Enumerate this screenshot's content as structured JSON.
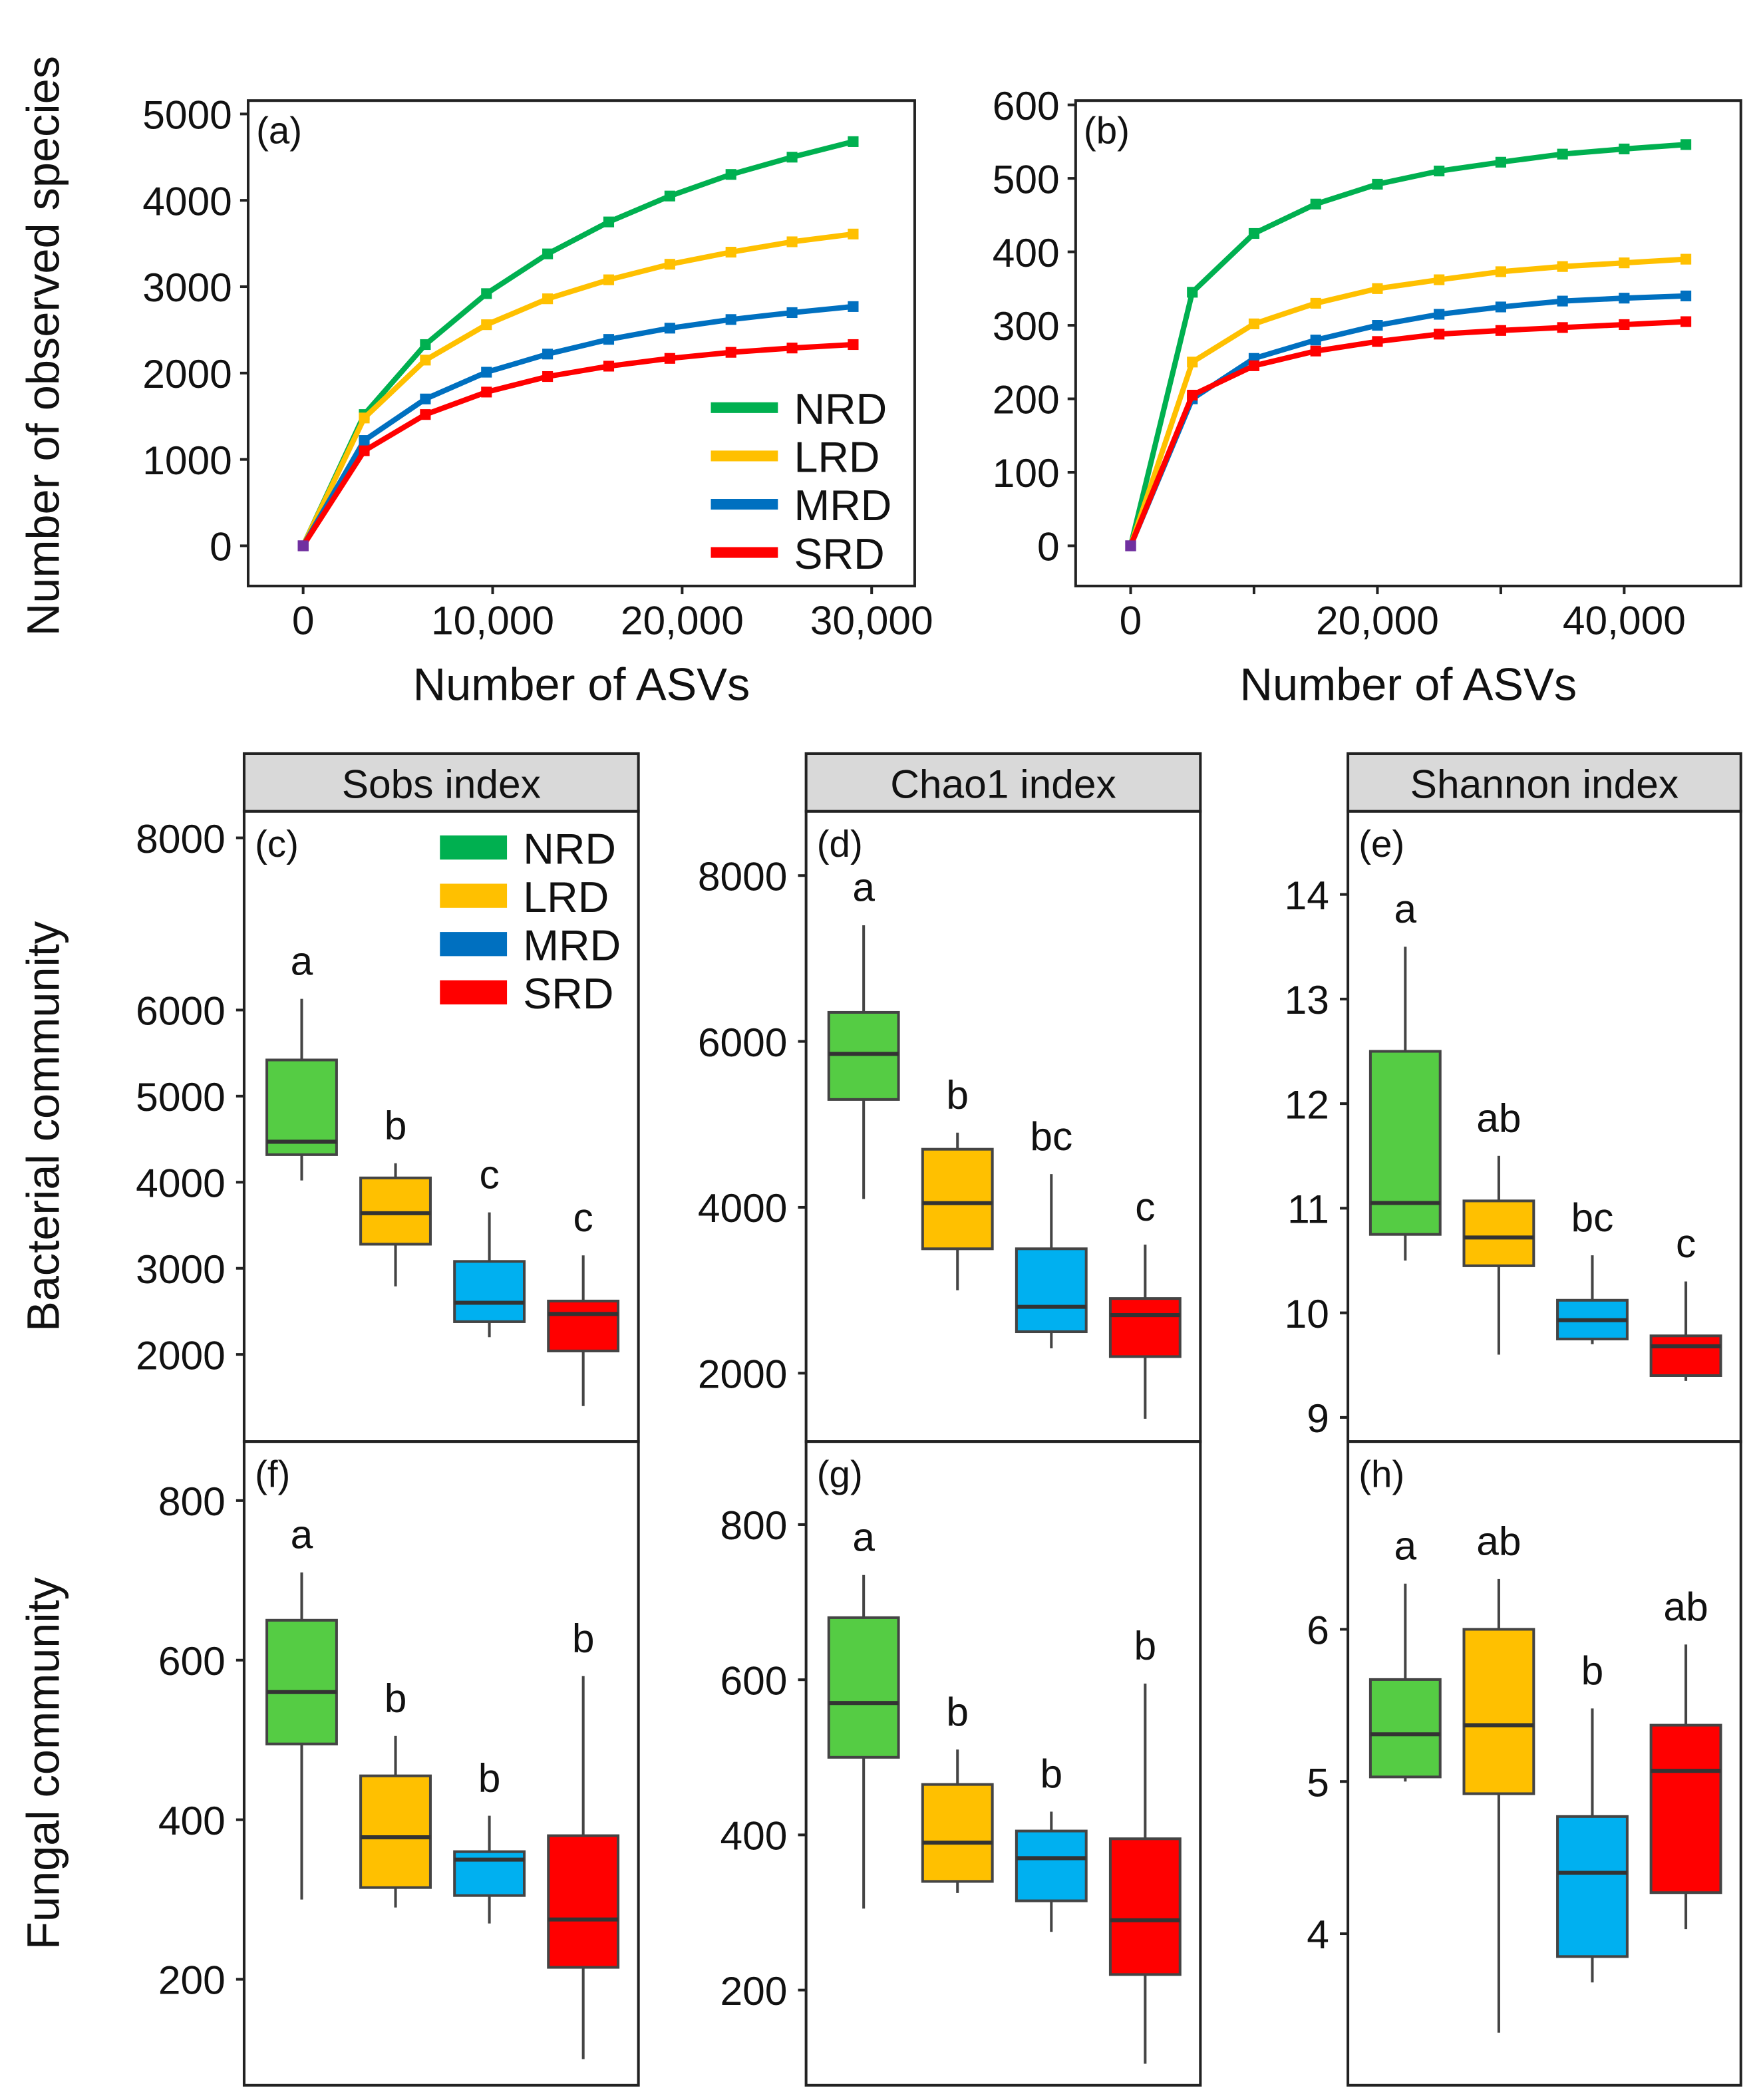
{
  "chart_data": [
    {
      "type": "line",
      "panel_label": "(a)",
      "xlabel": "Number of ASVs",
      "ylabel": "Number of observed species",
      "xlim": [
        -3000,
        34000
      ],
      "ylim": [
        -1000,
        5200
      ],
      "xticks": [
        0,
        10000,
        20000,
        30000
      ],
      "xtick_labels": [
        "0",
        "10,000",
        "20,000",
        "30,000"
      ],
      "yticks": [
        0,
        1000,
        2000,
        3000,
        4000,
        5000
      ],
      "ytick_labels": [
        "0",
        "1000",
        "2000",
        "3000",
        "4000",
        "5000"
      ],
      "legend": {
        "placement": "bottom-right",
        "entries": [
          "NRD",
          "LRD",
          "MRD",
          "SRD"
        ]
      },
      "x": [
        0,
        3225,
        6450,
        9675,
        12900,
        16125,
        19350,
        22575,
        25800,
        29025
      ],
      "series": [
        {
          "name": "NRD",
          "color": "#00b050",
          "values": [
            0,
            1520,
            2330,
            2920,
            3380,
            3750,
            4050,
            4300,
            4500,
            4680
          ]
        },
        {
          "name": "LRD",
          "color": "#ffc000",
          "values": [
            0,
            1480,
            2150,
            2560,
            2860,
            3080,
            3260,
            3400,
            3520,
            3610
          ]
        },
        {
          "name": "MRD",
          "color": "#0070c0",
          "values": [
            0,
            1220,
            1700,
            2010,
            2220,
            2390,
            2520,
            2620,
            2700,
            2770
          ]
        },
        {
          "name": "SRD",
          "color": "#ff0000",
          "values": [
            0,
            1100,
            1520,
            1780,
            1960,
            2080,
            2170,
            2240,
            2290,
            2330
          ]
        }
      ]
    },
    {
      "type": "line",
      "panel_label": "(b)",
      "xlabel": "Number of ASVs",
      "ylabel": "",
      "xlim": [
        -4500,
        49500
      ],
      "ylim": [
        -55,
        605
      ],
      "xticks": [
        0,
        20000,
        40000
      ],
      "xtick_labels": [
        "0",
        "20,000",
        "40,000"
      ],
      "minor_xticks": [
        10000,
        30000
      ],
      "yticks": [
        0,
        100,
        200,
        300,
        400,
        500,
        600
      ],
      "ytick_labels": [
        "0",
        "100",
        "200",
        "300",
        "400",
        "500",
        "600"
      ],
      "x": [
        0,
        5000,
        10000,
        15000,
        20000,
        25000,
        30000,
        35000,
        40000,
        45000
      ],
      "series": [
        {
          "name": "NRD",
          "color": "#00b050",
          "values": [
            0,
            345,
            425,
            465,
            492,
            510,
            522,
            533,
            540,
            546
          ]
        },
        {
          "name": "LRD",
          "color": "#ffc000",
          "values": [
            0,
            250,
            302,
            330,
            350,
            362,
            373,
            380,
            385,
            390
          ]
        },
        {
          "name": "MRD",
          "color": "#0070c0",
          "values": [
            0,
            200,
            255,
            280,
            300,
            315,
            325,
            333,
            337,
            340
          ]
        },
        {
          "name": "SRD",
          "color": "#ff0000",
          "values": [
            0,
            205,
            245,
            265,
            278,
            288,
            293,
            297,
            301,
            305
          ]
        }
      ]
    },
    {
      "type": "box",
      "panel_label": "(c)",
      "strip": "Sobs index",
      "row_label": "Bacterial community",
      "categories": [
        "NRD",
        "LRD",
        "MRD",
        "SRD"
      ],
      "yticks": [
        2000,
        3000,
        4000,
        5000,
        6000,
        8000
      ],
      "ytick_labels": [
        "2000",
        "3000",
        "4000",
        "5000",
        "6000",
        "8000"
      ],
      "legend": {
        "placement": "top-right",
        "entries": [
          "NRD",
          "LRD",
          "MRD",
          "SRD"
        ]
      },
      "boxes": [
        {
          "min": 4020,
          "q1": 4320,
          "median": 4470,
          "q3": 5420,
          "max": 6130,
          "letter": "a"
        },
        {
          "min": 2790,
          "q1": 3280,
          "median": 3640,
          "q3": 4050,
          "max": 4220,
          "letter": "b"
        },
        {
          "min": 2200,
          "q1": 2380,
          "median": 2600,
          "q3": 3080,
          "max": 3650,
          "letter": "c"
        },
        {
          "min": 1400,
          "q1": 2040,
          "median": 2470,
          "q3": 2620,
          "max": 3150,
          "letter": "c"
        }
      ]
    },
    {
      "type": "box",
      "panel_label": "(d)",
      "strip": "Chao1 index",
      "categories": [
        "NRD",
        "LRD",
        "MRD",
        "SRD"
      ],
      "yticks": [
        2000,
        4000,
        6000,
        8000
      ],
      "ytick_labels": [
        "2000",
        "4000",
        "6000",
        "8000"
      ],
      "boxes": [
        {
          "min": 4100,
          "q1": 5300,
          "median": 5850,
          "q3": 6350,
          "max": 7400,
          "letter": "a"
        },
        {
          "min": 3000,
          "q1": 3500,
          "median": 4050,
          "q3": 4700,
          "max": 4900,
          "letter": "b"
        },
        {
          "min": 2300,
          "q1": 2500,
          "median": 2800,
          "q3": 3500,
          "max": 4400,
          "letter": "bc"
        },
        {
          "min": 1450,
          "q1": 2200,
          "median": 2700,
          "q3": 2900,
          "max": 3550,
          "letter": "c"
        }
      ]
    },
    {
      "type": "box",
      "panel_label": "(e)",
      "strip": "Shannon index",
      "categories": [
        "NRD",
        "LRD",
        "MRD",
        "SRD"
      ],
      "yticks": [
        9,
        10,
        11,
        12,
        13,
        14
      ],
      "ytick_labels": [
        "9",
        "10",
        "11",
        "12",
        "13",
        "14"
      ],
      "boxes": [
        {
          "min": 10.5,
          "q1": 10.75,
          "median": 11.05,
          "q3": 12.5,
          "max": 13.5,
          "letter": "a"
        },
        {
          "min": 9.6,
          "q1": 10.45,
          "median": 10.72,
          "q3": 11.07,
          "max": 11.5,
          "letter": "ab"
        },
        {
          "min": 9.7,
          "q1": 9.75,
          "median": 9.93,
          "q3": 10.12,
          "max": 10.55,
          "letter": "bc"
        },
        {
          "min": 9.35,
          "q1": 9.4,
          "median": 9.68,
          "q3": 9.78,
          "max": 10.3,
          "letter": "c"
        }
      ]
    },
    {
      "type": "box",
      "panel_label": "(f)",
      "row_label": "Fungal community",
      "categories": [
        "NRD",
        "LRD",
        "MRD",
        "SRD"
      ],
      "yticks": [
        200,
        400,
        600,
        800
      ],
      "ytick_labels": [
        "200",
        "400",
        "600",
        "800"
      ],
      "boxes": [
        {
          "min": 300,
          "q1": 495,
          "median": 560,
          "q3": 650,
          "max": 710,
          "letter": "a"
        },
        {
          "min": 290,
          "q1": 315,
          "median": 378,
          "q3": 455,
          "max": 505,
          "letter": "b"
        },
        {
          "min": 270,
          "q1": 305,
          "median": 350,
          "q3": 360,
          "max": 405,
          "letter": "b"
        },
        {
          "min": 100,
          "q1": 215,
          "median": 275,
          "q3": 380,
          "max": 580,
          "letter": "b"
        }
      ]
    },
    {
      "type": "box",
      "panel_label": "(g)",
      "categories": [
        "NRD",
        "LRD",
        "MRD",
        "SRD"
      ],
      "yticks": [
        200,
        400,
        600,
        800
      ],
      "ytick_labels": [
        "200",
        "400",
        "600",
        "800"
      ],
      "boxes": [
        {
          "min": 305,
          "q1": 500,
          "median": 570,
          "q3": 680,
          "max": 735,
          "letter": "a"
        },
        {
          "min": 325,
          "q1": 340,
          "median": 390,
          "q3": 465,
          "max": 510,
          "letter": "b"
        },
        {
          "min": 275,
          "q1": 315,
          "median": 370,
          "q3": 405,
          "max": 430,
          "letter": "b"
        },
        {
          "min": 105,
          "q1": 220,
          "median": 290,
          "q3": 395,
          "max": 595,
          "letter": "b"
        }
      ]
    },
    {
      "type": "box",
      "panel_label": "(h)",
      "categories": [
        "NRD",
        "LRD",
        "MRD",
        "SRD"
      ],
      "yticks": [
        4,
        5,
        6
      ],
      "ytick_labels": [
        "4",
        "5",
        "6"
      ],
      "boxes": [
        {
          "min": 5.0,
          "q1": 5.03,
          "median": 5.31,
          "q3": 5.67,
          "max": 6.3,
          "letter": "a"
        },
        {
          "min": 3.35,
          "q1": 4.92,
          "median": 5.37,
          "q3": 6.0,
          "max": 6.33,
          "letter": "ab"
        },
        {
          "min": 3.68,
          "q1": 3.85,
          "median": 4.4,
          "q3": 4.77,
          "max": 5.48,
          "letter": "b"
        },
        {
          "min": 4.03,
          "q1": 4.27,
          "median": 5.07,
          "q3": 5.37,
          "max": 5.9,
          "letter": "ab"
        }
      ]
    }
  ],
  "box_colors": [
    "#55cc44",
    "#ffc000",
    "#00b0f0",
    "#ff0000"
  ]
}
